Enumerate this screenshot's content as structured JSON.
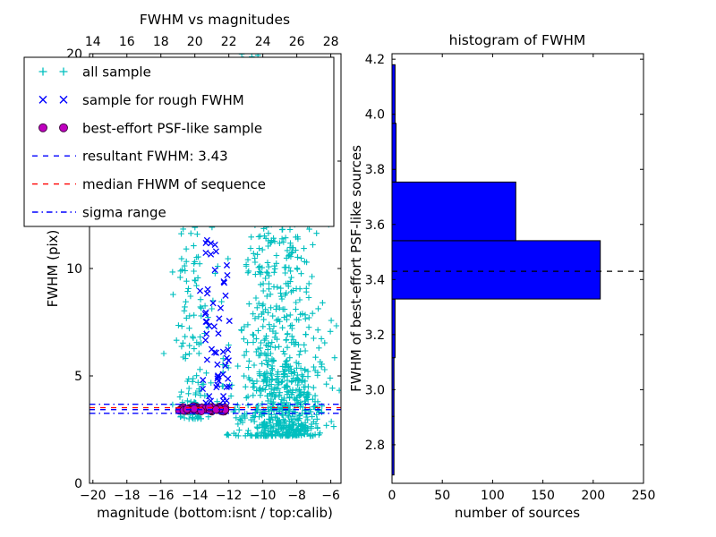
{
  "figure": {
    "background": "#ffffff"
  },
  "chart_data": [
    {
      "type": "scatter",
      "title": "FWHM vs magnitudes",
      "xlabel": "magnitude (bottom:isnt / top:calib)",
      "ylabel": "FWHM (pix)",
      "xlim": [
        -20.2,
        -5.4
      ],
      "ylim": [
        0,
        20
      ],
      "xticks_bottom": [
        -20,
        -18,
        -16,
        -14,
        -12,
        -10,
        -8,
        -6
      ],
      "xticks_top": [
        14,
        16,
        18,
        20,
        22,
        24,
        26,
        28
      ],
      "top_axis_offset": 34,
      "yticks": [
        0,
        5,
        10,
        15,
        20
      ],
      "seed": 42,
      "lines": [
        {
          "y": 3.43,
          "color": "#0000ff",
          "style": "dashed",
          "name": "resultant-fwhm-line",
          "label": "resultant FWHM: 3.43"
        },
        {
          "y": 3.52,
          "color": "#ff0000",
          "style": "dashed",
          "name": "median-fwhm-line",
          "label": "median FHWM of sequence"
        },
        {
          "y": 3.26,
          "color": "#0000ff",
          "style": "dashdot",
          "name": "sigma-range-low-line",
          "label": "sigma range"
        },
        {
          "y": 3.68,
          "color": "#0000ff",
          "style": "dashdot",
          "name": "sigma-range-high-line",
          "label": "sigma range"
        }
      ],
      "series": [
        {
          "name": "all sample",
          "marker": "plus",
          "color": "#00bfbf",
          "clusters": [
            {
              "count": 480,
              "x": {
                "dist": "normal",
                "mu": -9.2,
                "sigma": 1.1
              },
              "y": {
                "dist": "power",
                "min": 2.2,
                "max": 13,
                "exp": 2.0
              }
            },
            {
              "count": 150,
              "x": {
                "dist": "normal",
                "mu": -8.2,
                "sigma": 0.8
              },
              "y": {
                "dist": "power",
                "min": 2.2,
                "max": 5.5,
                "exp": 1.3
              }
            },
            {
              "count": 140,
              "x": {
                "dist": "normal",
                "mu": -9.0,
                "sigma": 1.6
              },
              "y": {
                "dist": "power",
                "min": 2.5,
                "max": 15.5,
                "exp": 1.6
              }
            },
            {
              "count": 130,
              "x": {
                "dist": "normal",
                "mu": -14.1,
                "sigma": 0.55
              },
              "y": {
                "dist": "power",
                "min": 3.0,
                "max": 12.5,
                "exp": 1.8
              }
            },
            {
              "count": 60,
              "x": {
                "dist": "normal",
                "mu": -10.6,
                "sigma": 0.35
              },
              "y": {
                "dist": "uniform",
                "min": 12.5,
                "max": 20
              }
            },
            {
              "count": 30,
              "x": {
                "dist": "normal",
                "mu": -10.3,
                "sigma": 0.7
              },
              "y": {
                "dist": "uniform",
                "min": 15,
                "max": 20
              }
            },
            {
              "count": 70,
              "x": {
                "dist": "uniform",
                "min": -12.5,
                "max": -6.2
              },
              "y": {
                "dist": "power",
                "min": 2.2,
                "max": 6,
                "exp": 1.5
              }
            }
          ]
        },
        {
          "name": "sample for rough FWHM",
          "marker": "x",
          "color": "#0000ff",
          "clusters": [
            {
              "count": 28,
              "x": {
                "dist": "normal",
                "mu": -13.1,
                "sigma": 0.25
              },
              "y": {
                "dist": "uniform",
                "min": 3.4,
                "max": 11.6
              }
            },
            {
              "count": 22,
              "x": {
                "dist": "normal",
                "mu": -12.25,
                "sigma": 0.3
              },
              "y": {
                "dist": "uniform",
                "min": 3.4,
                "max": 10.5
              }
            },
            {
              "count": 10,
              "x": {
                "dist": "uniform",
                "min": -13.6,
                "max": -11.8
              },
              "y": {
                "dist": "uniform",
                "min": 3.4,
                "max": 5.2
              }
            }
          ]
        },
        {
          "name": "best-effort PSF-like sample",
          "marker": "circle",
          "color": "#bf00bf",
          "edge": "#3a003a",
          "clusters": [
            {
              "count": 55,
              "x": {
                "dist": "uniform",
                "min": -14.95,
                "max": -12.1
              },
              "y": {
                "dist": "normal",
                "mu": 3.47,
                "sigma": 0.06
              }
            }
          ]
        }
      ]
    },
    {
      "type": "histogram",
      "orientation": "horizontal",
      "title": "histogram of FWHM",
      "xlabel": "number of sources",
      "ylabel": "FWHM of best-effort PSF-like sources",
      "xlim": [
        0,
        250
      ],
      "ylim": [
        2.66,
        4.22
      ],
      "xticks": [
        0,
        50,
        100,
        150,
        200,
        250
      ],
      "yticks": [
        2.8,
        3.0,
        3.2,
        3.4,
        3.6,
        3.8,
        4.0,
        4.2
      ],
      "bar_color": "#0000ff",
      "bins": {
        "edges": [
          2.69,
          2.903,
          3.116,
          3.329,
          3.541,
          3.754,
          3.967,
          4.18
        ],
        "counts": [
          2,
          2,
          3,
          207,
          123,
          4,
          3
        ]
      },
      "dashed_line_y": 3.43
    }
  ],
  "legend": {
    "entries": [
      {
        "label": "all sample",
        "kind": "marker",
        "marker": "plus",
        "color": "#00bfbf"
      },
      {
        "label": "sample for rough FWHM",
        "kind": "marker",
        "marker": "x",
        "color": "#0000ff"
      },
      {
        "label": "best-effort PSF-like sample",
        "kind": "marker",
        "marker": "circle",
        "color": "#bf00bf"
      },
      {
        "label": "resultant FWHM: 3.43",
        "kind": "line",
        "style": "dashed",
        "color": "#0000ff"
      },
      {
        "label": "median FHWM of sequence",
        "kind": "line",
        "style": "dashed",
        "color": "#ff0000"
      },
      {
        "label": "sigma range",
        "kind": "line",
        "style": "dashdot",
        "color": "#0000ff"
      }
    ]
  }
}
